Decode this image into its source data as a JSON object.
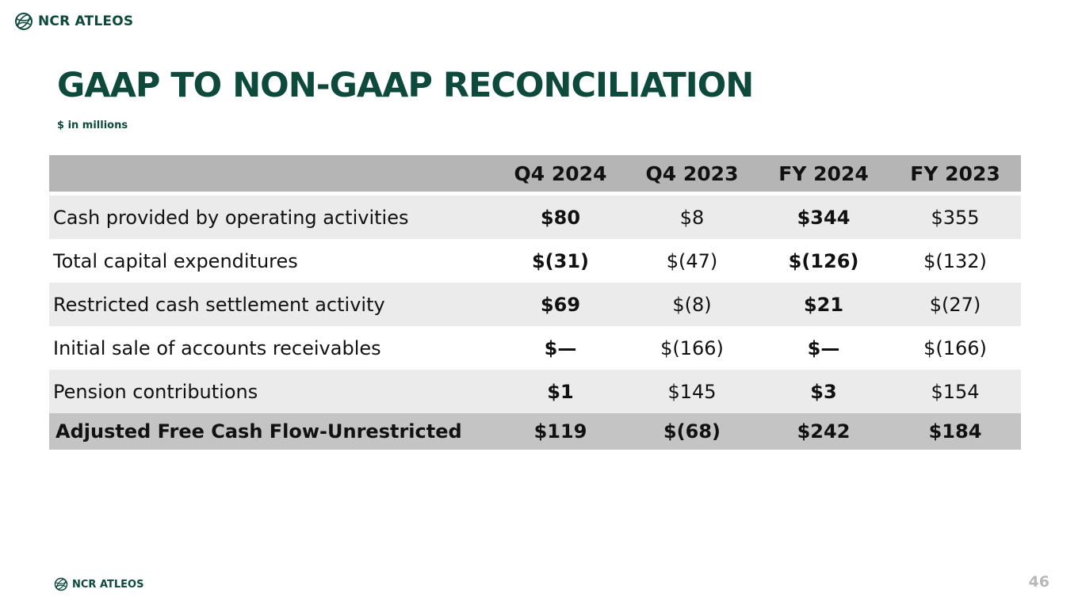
{
  "header": {
    "logo_text": "NCR ATLEOS",
    "logo_icon": "globe-icon"
  },
  "title": "GAAP TO NON-GAAP RECONCILIATION",
  "subtitle": "$ in millions",
  "table": {
    "columns": [
      "",
      "Q4 2024",
      "Q4 2023",
      "FY 2024",
      "FY 2023"
    ],
    "rows": [
      {
        "label": "Cash provided by operating activities",
        "values": [
          "$80",
          "$8",
          "$344",
          "$355"
        ]
      },
      {
        "label": "Total capital expenditures",
        "values": [
          "$(31)",
          "$(47)",
          "$(126)",
          "$(132)"
        ]
      },
      {
        "label": "Restricted cash settlement activity",
        "values": [
          "$69",
          "$(8)",
          "$21",
          "$(27)"
        ]
      },
      {
        "label": "Initial sale of accounts receivables",
        "values": [
          "$—",
          "$(166)",
          "$—",
          "$(166)"
        ]
      },
      {
        "label": "Pension contributions",
        "values": [
          "$1",
          "$145",
          "$3",
          "$154"
        ]
      }
    ],
    "total": {
      "label": "Adjusted Free Cash Flow-Unrestricted",
      "values": [
        "$119",
        "$(68)",
        "$242",
        "$184"
      ]
    }
  },
  "footer": {
    "logo_text": "NCR ATLEOS",
    "logo_icon": "globe-icon",
    "page_number": "46"
  },
  "colors": {
    "brand_green": "#0e4a3c",
    "header_gray": "#b5b5b5",
    "row_gray": "#ebebeb",
    "total_gray": "#c4c4c4",
    "page_number_gray": "#b8b8b8"
  }
}
